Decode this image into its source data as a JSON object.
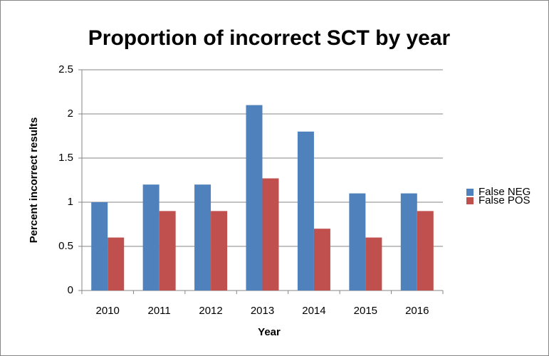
{
  "chart_data": {
    "type": "bar",
    "title": "Proportion of incorrect SCT by year",
    "x_label": "Year",
    "y_label": "Percent incorrect results",
    "categories": [
      "2010",
      "2011",
      "2012",
      "2013",
      "2014",
      "2015",
      "2016"
    ],
    "series": [
      {
        "name": "False NEG",
        "color": "#4f81bd",
        "values": [
          1,
          1.2,
          1.2,
          2.1,
          1.8,
          1.1,
          1.1
        ]
      },
      {
        "name": "False POS",
        "color": "#c0504d",
        "values": [
          0.6,
          0.9,
          0.9,
          1.27,
          0.7,
          0.6,
          0.9
        ]
      }
    ],
    "ylim": [
      0,
      2.5
    ],
    "yticks": [
      0,
      0.5,
      1,
      1.5,
      2,
      2.5
    ],
    "grid": true,
    "legend": "right"
  }
}
